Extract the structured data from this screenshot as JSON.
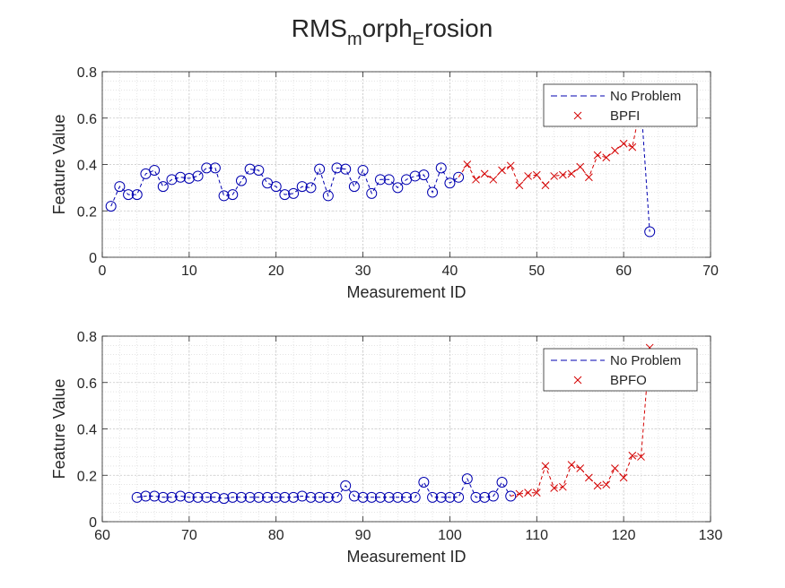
{
  "figure": {
    "title": {
      "base": "RMS",
      "sub1": "m",
      "mid": "orph",
      "sub2": "E",
      "end": "rosion"
    }
  },
  "colors": {
    "no_problem": "#0000b0",
    "fault": "#d40000",
    "grid": "#d4d4d4",
    "axis": "#262626"
  },
  "chart_data": [
    {
      "type": "line",
      "xlabel": "Measurement ID",
      "ylabel": "Feature Value",
      "xlim": [
        0,
        70
      ],
      "ylim": [
        0,
        0.8
      ],
      "xticks": [
        "0",
        "10",
        "20",
        "30",
        "40",
        "50",
        "60",
        "70"
      ],
      "yticks": [
        "0",
        "0.2",
        "0.4",
        "0.6",
        "0.8"
      ],
      "grid": "on",
      "legend_position": "top-right",
      "legend": [
        {
          "label": "No Problem",
          "style": "dashed-line"
        },
        {
          "label": "BPFI",
          "style": "x-marker"
        }
      ],
      "series": [
        {
          "name": "No Problem",
          "line": "dashed",
          "marker": "o",
          "x": [
            1,
            2,
            3,
            4,
            5,
            6,
            7,
            8,
            9,
            10,
            11,
            12,
            13,
            14,
            15,
            16,
            17,
            18,
            19,
            20,
            21,
            22,
            23,
            24,
            25,
            26,
            27,
            28,
            29,
            30,
            31,
            32,
            33,
            34,
            35,
            36,
            37,
            38,
            39,
            40,
            41
          ],
          "y": [
            0.22,
            0.305,
            0.27,
            0.27,
            0.36,
            0.375,
            0.305,
            0.335,
            0.345,
            0.34,
            0.35,
            0.385,
            0.385,
            0.265,
            0.27,
            0.33,
            0.38,
            0.375,
            0.32,
            0.305,
            0.27,
            0.275,
            0.305,
            0.3,
            0.38,
            0.265,
            0.385,
            0.38,
            0.305,
            0.375,
            0.275,
            0.335,
            0.335,
            0.3,
            0.335,
            0.35,
            0.355,
            0.28,
            0.385,
            0.32,
            0.345
          ]
        },
        {
          "name": "BPFI",
          "line": "dashed",
          "marker": "x",
          "x": [
            42,
            43,
            44,
            45,
            46,
            47,
            48,
            49,
            50,
            51,
            52,
            53,
            54,
            55,
            56,
            57,
            58,
            59,
            60,
            61,
            62
          ],
          "y": [
            0.4,
            0.335,
            0.36,
            0.335,
            0.375,
            0.395,
            0.31,
            0.35,
            0.355,
            0.31,
            0.35,
            0.355,
            0.36,
            0.39,
            0.345,
            0.44,
            0.43,
            0.46,
            0.49,
            0.475,
            0.66
          ]
        },
        {
          "name": "No Problem",
          "line": "dashed",
          "marker": "o",
          "x": [
            63
          ],
          "y": [
            0.11
          ]
        }
      ]
    },
    {
      "type": "line",
      "xlabel": "Measurement ID",
      "ylabel": "Feature Value",
      "xlim": [
        60,
        130
      ],
      "ylim": [
        0,
        0.8
      ],
      "xticks": [
        "60",
        "70",
        "80",
        "90",
        "100",
        "110",
        "120",
        "130"
      ],
      "yticks": [
        "0",
        "0.2",
        "0.4",
        "0.6",
        "0.8"
      ],
      "grid": "on",
      "legend_position": "top-right",
      "legend": [
        {
          "label": "No Problem",
          "style": "dashed-line"
        },
        {
          "label": "BPFO",
          "style": "x-marker"
        }
      ],
      "series": [
        {
          "name": "No Problem",
          "line": "dashed",
          "marker": "o",
          "x": [
            64,
            65,
            66,
            67,
            68,
            69,
            70,
            71,
            72,
            73,
            74,
            75,
            76,
            77,
            78,
            79,
            80,
            81,
            82,
            83,
            84,
            85,
            86,
            87,
            88,
            89,
            90,
            91,
            92,
            93,
            94,
            95,
            96,
            97,
            98,
            99,
            100,
            101,
            102,
            103,
            104,
            105,
            106,
            107
          ],
          "y": [
            0.105,
            0.11,
            0.11,
            0.105,
            0.105,
            0.11,
            0.105,
            0.105,
            0.105,
            0.105,
            0.1,
            0.105,
            0.105,
            0.105,
            0.105,
            0.105,
            0.105,
            0.105,
            0.105,
            0.11,
            0.105,
            0.105,
            0.105,
            0.105,
            0.155,
            0.11,
            0.105,
            0.105,
            0.105,
            0.105,
            0.105,
            0.105,
            0.105,
            0.17,
            0.105,
            0.105,
            0.105,
            0.105,
            0.185,
            0.105,
            0.105,
            0.11,
            0.17,
            0.11
          ]
        },
        {
          "name": "BPFO",
          "line": "dashed",
          "marker": "x",
          "x": [
            108,
            109,
            110,
            111,
            112,
            113,
            114,
            115,
            116,
            117,
            118,
            119,
            120,
            121,
            122,
            123
          ],
          "y": [
            0.12,
            0.125,
            0.125,
            0.24,
            0.145,
            0.15,
            0.245,
            0.23,
            0.19,
            0.155,
            0.16,
            0.23,
            0.19,
            0.285,
            0.28,
            0.75
          ]
        }
      ]
    }
  ]
}
